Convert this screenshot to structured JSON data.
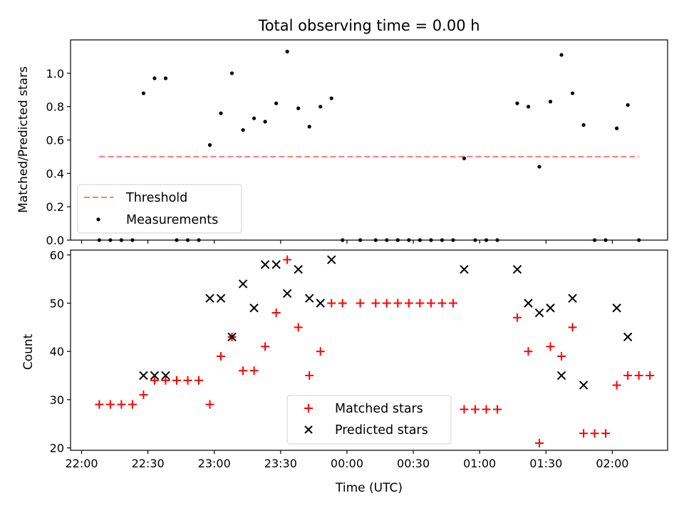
{
  "title": "Total observing time = 0.00 h",
  "chart_data": [
    {
      "type": "scatter",
      "ylabel": "Matched/Predicted stars",
      "xlim": [
        -5,
        265
      ],
      "ylim": [
        0,
        1.2
      ],
      "y_ticks": [
        0.0,
        0.2,
        0.4,
        0.6,
        0.8,
        1.0
      ],
      "y_tick_labels": [
        "0.0",
        "0.2",
        "0.4",
        "0.6",
        "0.8",
        "1.0"
      ],
      "x_tick_values": [
        0,
        30,
        60,
        90,
        120,
        150,
        180,
        210,
        240
      ],
      "threshold": {
        "name": "Threshold",
        "value": 0.5,
        "x_range": [
          8,
          252
        ],
        "color": "#ff7b7b"
      },
      "series": [
        {
          "name": "Measurements",
          "color": "#000000",
          "points": [
            [
              8,
              0.0
            ],
            [
              13,
              0.0
            ],
            [
              18,
              0.0
            ],
            [
              23,
              0.0
            ],
            [
              28,
              0.88
            ],
            [
              33,
              0.97
            ],
            [
              38,
              0.97
            ],
            [
              43,
              0.0
            ],
            [
              48,
              0.0
            ],
            [
              53,
              0.0
            ],
            [
              58,
              0.57
            ],
            [
              63,
              0.76
            ],
            [
              68,
              1.0
            ],
            [
              73,
              0.66
            ],
            [
              78,
              0.73
            ],
            [
              83,
              0.71
            ],
            [
              88,
              0.82
            ],
            [
              93,
              1.13
            ],
            [
              98,
              0.79
            ],
            [
              103,
              0.68
            ],
            [
              108,
              0.8
            ],
            [
              113,
              0.85
            ],
            [
              118,
              0.0
            ],
            [
              126,
              0.0
            ],
            [
              133,
              0.0
            ],
            [
              138,
              0.0
            ],
            [
              143,
              0.0
            ],
            [
              148,
              0.0
            ],
            [
              153,
              0.0
            ],
            [
              158,
              0.0
            ],
            [
              163,
              0.0
            ],
            [
              168,
              0.0
            ],
            [
              173,
              0.49
            ],
            [
              178,
              0.0
            ],
            [
              183,
              0.0
            ],
            [
              188,
              0.0
            ],
            [
              197,
              0.82
            ],
            [
              202,
              0.8
            ],
            [
              207,
              0.44
            ],
            [
              212,
              0.83
            ],
            [
              217,
              1.11
            ],
            [
              222,
              0.88
            ],
            [
              227,
              0.69
            ],
            [
              232,
              0.0
            ],
            [
              237,
              0.0
            ],
            [
              242,
              0.67
            ],
            [
              247,
              0.81
            ],
            [
              252,
              0.0
            ]
          ]
        }
      ],
      "legend": {
        "position": "lower-left",
        "entries": [
          "Threshold",
          "Measurements"
        ]
      }
    },
    {
      "type": "scatter",
      "xlabel": "Time (UTC)",
      "ylabel": "Count",
      "xlim": [
        -5,
        265
      ],
      "ylim": [
        19.5,
        61
      ],
      "x_ticks": [
        0,
        30,
        60,
        90,
        120,
        150,
        180,
        210,
        240
      ],
      "x_tick_labels": [
        "22:00",
        "22:30",
        "23:00",
        "23:30",
        "00:00",
        "00:30",
        "01:00",
        "01:30",
        "02:00"
      ],
      "y_ticks": [
        20,
        30,
        40,
        50,
        60
      ],
      "y_tick_labels": [
        "20",
        "30",
        "40",
        "50",
        "60"
      ],
      "series": [
        {
          "name": "Matched stars",
          "marker": "plus",
          "color": "#ff0000",
          "points": [
            [
              8,
              29
            ],
            [
              13,
              29
            ],
            [
              18,
              29
            ],
            [
              23,
              29
            ],
            [
              28,
              31
            ],
            [
              33,
              34
            ],
            [
              38,
              34
            ],
            [
              43,
              34
            ],
            [
              48,
              34
            ],
            [
              53,
              34
            ],
            [
              58,
              29
            ],
            [
              63,
              39
            ],
            [
              68,
              43
            ],
            [
              73,
              36
            ],
            [
              78,
              36
            ],
            [
              83,
              41
            ],
            [
              88,
              48
            ],
            [
              93,
              59
            ],
            [
              98,
              45
            ],
            [
              103,
              35
            ],
            [
              108,
              40
            ],
            [
              113,
              50
            ],
            [
              118,
              50
            ],
            [
              126,
              50
            ],
            [
              133,
              50
            ],
            [
              138,
              50
            ],
            [
              143,
              50
            ],
            [
              148,
              50
            ],
            [
              153,
              50
            ],
            [
              158,
              50
            ],
            [
              163,
              50
            ],
            [
              168,
              50
            ],
            [
              173,
              28
            ],
            [
              178,
              28
            ],
            [
              183,
              28
            ],
            [
              188,
              28
            ],
            [
              197,
              47
            ],
            [
              202,
              40
            ],
            [
              207,
              21
            ],
            [
              212,
              41
            ],
            [
              217,
              39
            ],
            [
              222,
              45
            ],
            [
              227,
              23
            ],
            [
              232,
              23
            ],
            [
              237,
              23
            ],
            [
              242,
              33
            ],
            [
              247,
              35
            ],
            [
              252,
              35
            ],
            [
              257,
              35
            ]
          ]
        },
        {
          "name": "Predicted stars",
          "marker": "x",
          "color": "#000000",
          "points": [
            [
              28,
              35
            ],
            [
              33,
              35
            ],
            [
              38,
              35
            ],
            [
              58,
              51
            ],
            [
              63,
              51
            ],
            [
              68,
              43
            ],
            [
              73,
              54
            ],
            [
              78,
              49
            ],
            [
              83,
              58
            ],
            [
              88,
              58
            ],
            [
              93,
              52
            ],
            [
              98,
              57
            ],
            [
              103,
              51
            ],
            [
              108,
              50
            ],
            [
              113,
              59
            ],
            [
              173,
              57
            ],
            [
              197,
              57
            ],
            [
              202,
              50
            ],
            [
              207,
              48
            ],
            [
              212,
              49
            ],
            [
              217,
              35
            ],
            [
              222,
              51
            ],
            [
              227,
              33
            ],
            [
              242,
              49
            ],
            [
              247,
              43
            ]
          ]
        }
      ],
      "legend": {
        "position": "lower-center",
        "entries": [
          "Matched stars",
          "Predicted stars"
        ]
      }
    }
  ]
}
